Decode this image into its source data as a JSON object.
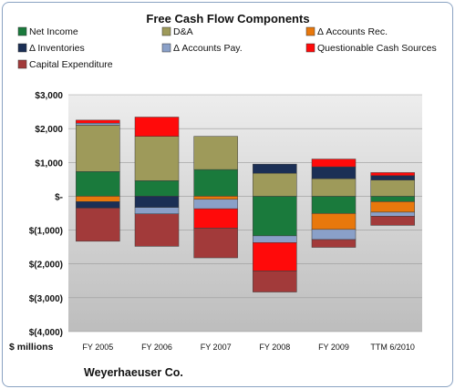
{
  "chart_data": {
    "type": "bar",
    "stacked": true,
    "title": "Free Cash Flow Components",
    "categories": [
      "FY 2005",
      "FY 2006",
      "FY 2007",
      "FY 2008",
      "FY 2009",
      "TTM 6/2010"
    ],
    "y_ticks": [
      "$3,000",
      "$2,000",
      "$1,000",
      "$-",
      "$(1,000)",
      "$(2,000)",
      "$(3,000)",
      "$(4,000)"
    ],
    "ylim": [
      -4000,
      3000
    ],
    "grid": true,
    "legend_position": "top",
    "xlabel": "$ millions",
    "footer": "Weyerhaeuser Co.",
    "series": [
      {
        "name": "Net Income",
        "color": "#1a7a3c",
        "values": [
          730,
          460,
          790,
          -1170,
          -510,
          -160
        ]
      },
      {
        "name": "D&A",
        "color": "#9e9a5a",
        "values": [
          1370,
          1310,
          980,
          680,
          520,
          480
        ]
      },
      {
        "name": "Δ Accounts Rec.",
        "color": "#e8780c",
        "values": [
          -160,
          0,
          -90,
          0,
          -470,
          -310
        ]
      },
      {
        "name": "Δ Inventories",
        "color": "#1b2f55",
        "values": [
          -190,
          -330,
          0,
          270,
          350,
          130
        ]
      },
      {
        "name": "Δ Accounts Pay.",
        "color": "#8aa0c8",
        "values": [
          60,
          -190,
          -280,
          -200,
          -300,
          -120
        ]
      },
      {
        "name": "Questionable Cash Sources",
        "color": "#ff0a0a",
        "values": [
          90,
          570,
          -570,
          -840,
          230,
          90
        ]
      },
      {
        "name": "Capital Expenditure",
        "color": "#a23a3a",
        "values": [
          -980,
          -960,
          -880,
          -620,
          -230,
          -270
        ]
      }
    ]
  }
}
